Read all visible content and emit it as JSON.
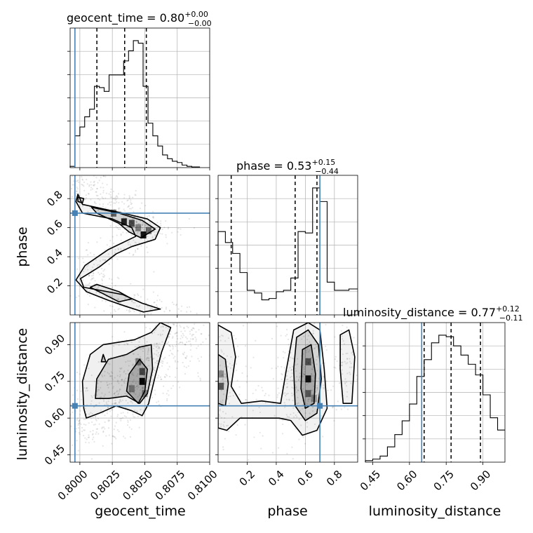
{
  "chart_data": {
    "type": "corner",
    "parameters": [
      {
        "name": "geocent_time",
        "range": [
          0.79925,
          0.81
        ],
        "truth": 0.79962,
        "median": 0.80345,
        "q_low": 0.80131,
        "q_high": 0.80512,
        "title": {
          "prefix": "geocent_time = 0.80",
          "plus": "+0.00",
          "minus": "−0.00"
        },
        "xlabel": "geocent_time",
        "ylabel": "",
        "xticks": [
          0.8,
          0.8025,
          0.805,
          0.8075,
          0.81
        ],
        "xtick_labels": [
          "0.8000",
          "0.8025",
          "0.8050",
          "0.8075",
          "0.8100"
        ],
        "hist_edges": [
          0.79925,
          0.79962,
          0.8,
          0.80037,
          0.80075,
          0.80112,
          0.8015,
          0.80187,
          0.80225,
          0.80262,
          0.803,
          0.80337,
          0.80375,
          0.80412,
          0.8045,
          0.80487,
          0.80525,
          0.80562,
          0.806,
          0.80637,
          0.80675,
          0.80712,
          0.8075,
          0.80787,
          0.80825,
          0.80862,
          0.80925
        ],
        "hist_counts": [
          0.01,
          0.25,
          0.32,
          0.4,
          0.46,
          0.64,
          0.63,
          0.6,
          0.73,
          0.73,
          0.73,
          0.84,
          0.92,
          1.0,
          0.98,
          0.64,
          0.35,
          0.25,
          0.17,
          0.1,
          0.07,
          0.05,
          0.04,
          0.02,
          0.01,
          0.005
        ]
      },
      {
        "name": "phase",
        "range": [
          0.0,
          0.96
        ],
        "truth": 0.7,
        "median": 0.53,
        "q_low": 0.09,
        "q_high": 0.68,
        "title": {
          "prefix": "phase = 0.53",
          "plus": "+0.15",
          "minus": "−0.44"
        },
        "xlabel": "phase",
        "ylabel": "phase",
        "xticks": [
          0.2,
          0.4,
          0.6,
          0.8
        ],
        "xtick_labels": [
          "0.2",
          "0.4",
          "0.6",
          "0.8"
        ],
        "yticks": [
          0.2,
          0.4,
          0.6,
          0.8
        ],
        "ytick_labels": [
          "0.2",
          "0.4",
          "0.6",
          "0.8"
        ],
        "hist_edges": [
          0.0,
          0.05,
          0.1,
          0.15,
          0.2,
          0.25,
          0.3,
          0.35,
          0.4,
          0.45,
          0.5,
          0.55,
          0.6,
          0.65,
          0.7,
          0.75,
          0.8,
          0.85,
          0.9,
          0.96
        ],
        "hist_counts": [
          0.61,
          0.53,
          0.45,
          0.31,
          0.18,
          0.16,
          0.11,
          0.12,
          0.17,
          0.18,
          0.27,
          0.61,
          0.6,
          0.93,
          0.83,
          0.24,
          0.18,
          0.18,
          0.19
        ]
      },
      {
        "name": "luminosity_distance",
        "range": [
          0.42,
          0.99
        ],
        "truth": 0.65,
        "median": 0.77,
        "q_low": 0.66,
        "q_high": 0.89,
        "title": {
          "prefix": "luminosity_distance = 0.77",
          "plus": "+0.12",
          "minus": "−0.11"
        },
        "xlabel": "luminosity_distance",
        "ylabel": "luminosity_distance",
        "xticks": [
          0.45,
          0.6,
          0.75,
          0.9
        ],
        "xtick_labels": [
          "0.45",
          "0.60",
          "0.75",
          "0.90"
        ],
        "yticks": [
          0.45,
          0.6,
          0.75,
          0.9
        ],
        "ytick_labels": [
          "0.45",
          "0.60",
          "0.75",
          "0.90"
        ],
        "hist_edges": [
          0.42,
          0.45,
          0.48,
          0.51,
          0.54,
          0.57,
          0.6,
          0.63,
          0.66,
          0.69,
          0.72,
          0.75,
          0.78,
          0.81,
          0.84,
          0.87,
          0.9,
          0.93,
          0.96,
          0.99
        ],
        "hist_counts": [
          0.01,
          0.02,
          0.04,
          0.1,
          0.18,
          0.27,
          0.38,
          0.56,
          0.67,
          0.78,
          0.83,
          0.82,
          0.76,
          0.7,
          0.64,
          0.57,
          0.44,
          0.29,
          0.21
        ]
      }
    ],
    "pairs": [
      {
        "x": "geocent_time",
        "y": "phase"
      },
      {
        "x": "geocent_time",
        "y": "luminosity_distance"
      },
      {
        "x": "phase",
        "y": "luminosity_distance"
      }
    ],
    "grid": true,
    "truth_color": "#4682b4",
    "quantile_line_style": "dashed",
    "hist_color": "#000000"
  }
}
